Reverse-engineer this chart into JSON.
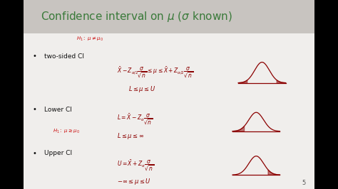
{
  "title": "Confidence interval on $\\mu$ ($\\sigma$ known)",
  "title_color": "#3a7a3a",
  "title_fontsize": 11,
  "title_bar_color": "#c8c4c0",
  "content_bg": "#f0eeec",
  "black_bar_color": "#000000",
  "black_bar_width": 0.07,
  "bullet1": "two-sided CI",
  "bullet2": "Lower CI",
  "bullet3": "Upper CI",
  "eq_color": "#8b0000",
  "h1_color": "#cc1111",
  "text_color": "#111111",
  "page_num": "5"
}
